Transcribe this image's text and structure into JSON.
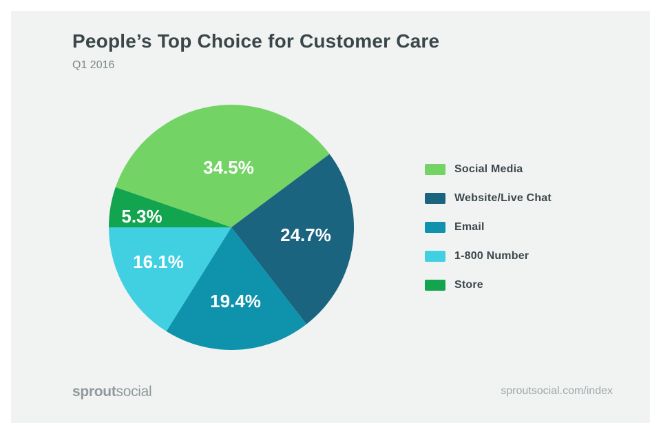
{
  "page": {
    "title": "People’s Top Choice for Customer Care",
    "subtitle": "Q1 2016",
    "footer": {
      "logo_bold": "sprout",
      "logo_light": "social",
      "url": "sproutsocial.com/index"
    }
  },
  "colors": {
    "background_outer": "#FFFFFF",
    "background_card": "#F1F3F2",
    "title_text": "#3B4649",
    "subtitle_text": "#7B8687",
    "legend_text": "#3C474B",
    "slice_label_text": "#FFFFFF",
    "footer_logo_text": "#8F999C",
    "footer_url_text": "#9EA8AB"
  },
  "chart_data": {
    "type": "pie",
    "title": "People’s Top Choice for Customer Care",
    "subtitle": "Q1 2016",
    "unit": "%",
    "legend_position": "right",
    "rotation_deg": 289.08,
    "slices": [
      {
        "label": "Social Media",
        "value": 34.5,
        "display": "34.5%",
        "color": "#73D365"
      },
      {
        "label": "Website/Live Chat",
        "value": 24.7,
        "display": "24.7%",
        "color": "#1A6480"
      },
      {
        "label": "Email",
        "value": 19.4,
        "display": "19.4%",
        "color": "#0F93AC"
      },
      {
        "label": "1-800 Number",
        "value": 16.1,
        "display": "16.1%",
        "color": "#41CFE2"
      },
      {
        "label": "Store",
        "value": 5.3,
        "display": "5.3%",
        "color": "#12A44E"
      }
    ]
  }
}
